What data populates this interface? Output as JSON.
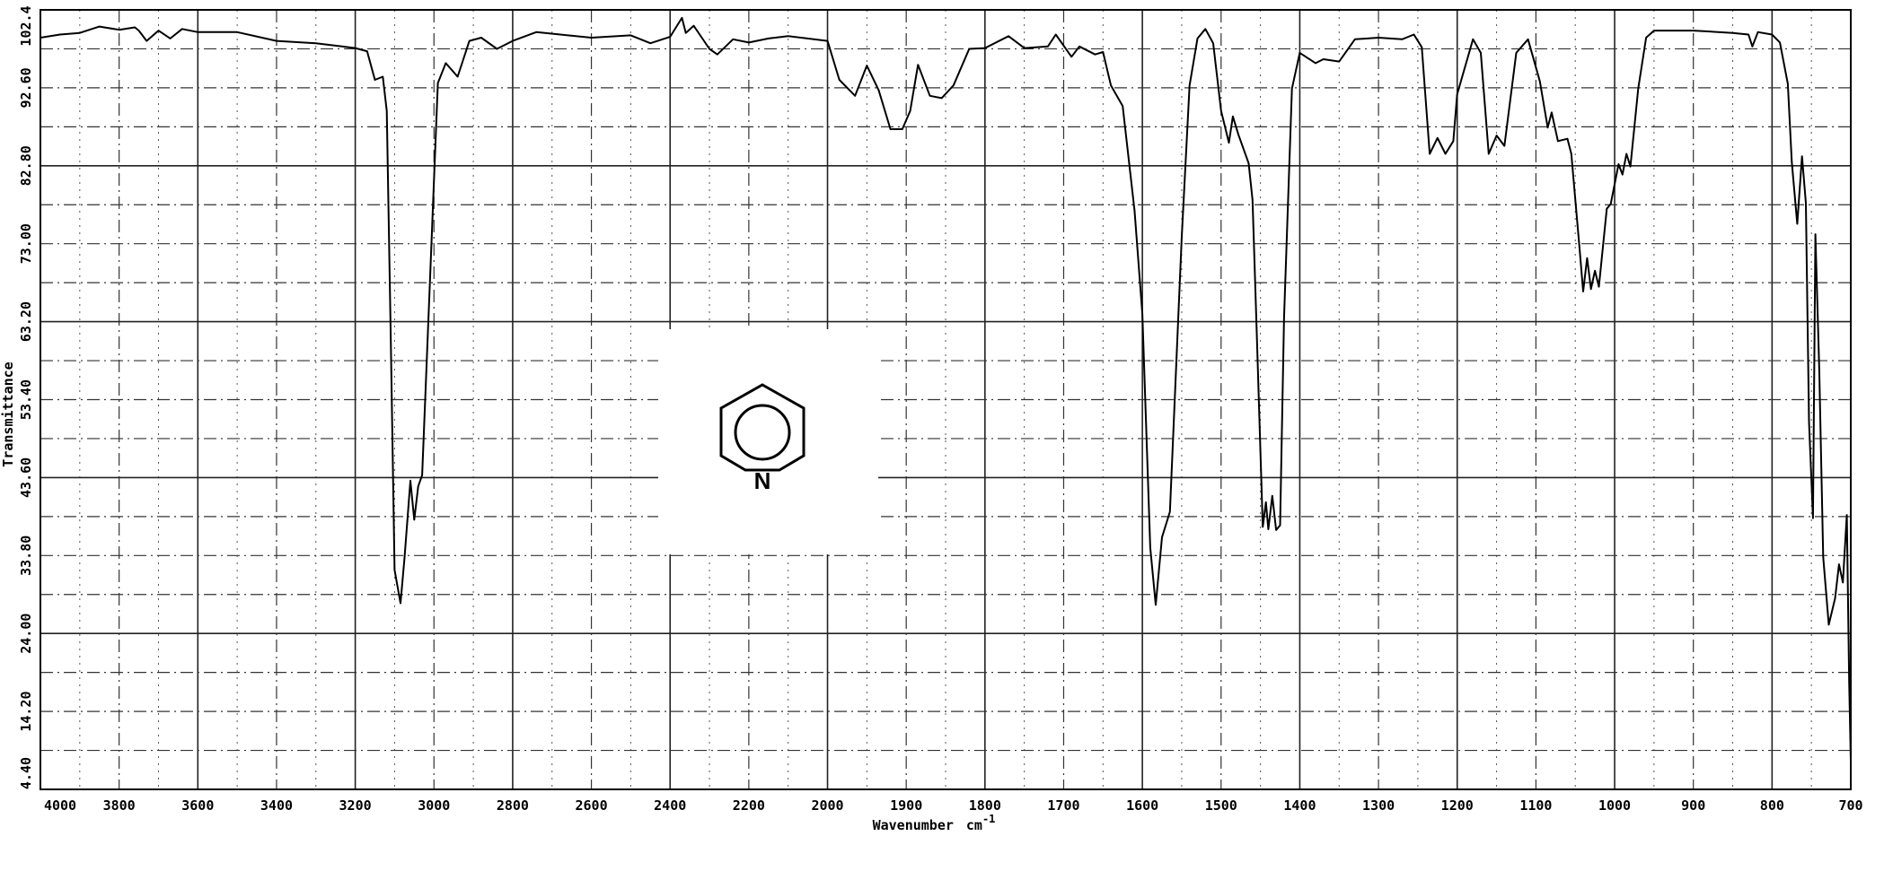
{
  "chart_data": {
    "type": "line",
    "title": "",
    "xlabel": "Wavenumber",
    "xlabel_unit": "cm",
    "xlabel_exp": "-1",
    "ylabel": "Transmittance",
    "xlim": [
      4000,
      700
    ],
    "ylim": [
      4.4,
      102.4
    ],
    "x_scale": "split: 200 cm-1 per division from 4000 to 2000, 100 cm-1 per division from 2000 to 700",
    "grid": true,
    "line_color": "#000000",
    "x_ticks": [
      "4000",
      "3800",
      "3600",
      "3400",
      "3200",
      "3000",
      "2800",
      "2600",
      "2400",
      "2200",
      "2000",
      "1900",
      "1800",
      "1700",
      "1600",
      "1500",
      "1400",
      "1300",
      "1200",
      "1100",
      "1000",
      "900",
      "800",
      "700"
    ],
    "y_ticks": [
      "4.40",
      "14.20",
      "24.00",
      "33.80",
      "43.60",
      "53.40",
      "63.20",
      "73.00",
      "82.80",
      "92.60",
      "102.4"
    ],
    "structure": {
      "name": "pyridine",
      "label": "N"
    },
    "points": [
      [
        4000,
        98.9
      ],
      [
        3950,
        99.3
      ],
      [
        3900,
        99.5
      ],
      [
        3850,
        100.3
      ],
      [
        3800,
        99.9
      ],
      [
        3760,
        100.2
      ],
      [
        3750,
        99.8
      ],
      [
        3730,
        98.5
      ],
      [
        3700,
        99.8
      ],
      [
        3670,
        98.8
      ],
      [
        3640,
        100
      ],
      [
        3600,
        99.6
      ],
      [
        3500,
        99.6
      ],
      [
        3400,
        98.5
      ],
      [
        3300,
        98.2
      ],
      [
        3200,
        97.6
      ],
      [
        3170,
        97.2
      ],
      [
        3150,
        93.6
      ],
      [
        3130,
        94.0
      ],
      [
        3120,
        89.7
      ],
      [
        3110,
        61.5
      ],
      [
        3100,
        32.0
      ],
      [
        3085,
        27.8
      ],
      [
        3075,
        33.4
      ],
      [
        3060,
        43.2
      ],
      [
        3050,
        38.3
      ],
      [
        3040,
        42.5
      ],
      [
        3030,
        43.9
      ],
      [
        3010,
        68.6
      ],
      [
        2990,
        93.2
      ],
      [
        2970,
        95.7
      ],
      [
        2940,
        94.0
      ],
      [
        2910,
        98.5
      ],
      [
        2880,
        98.9
      ],
      [
        2840,
        97.5
      ],
      [
        2800,
        98.5
      ],
      [
        2740,
        99.6
      ],
      [
        2600,
        98.9
      ],
      [
        2500,
        99.2
      ],
      [
        2450,
        98.2
      ],
      [
        2400,
        99.0
      ],
      [
        2370,
        101.4
      ],
      [
        2360,
        99.5
      ],
      [
        2340,
        100.4
      ],
      [
        2300,
        97.5
      ],
      [
        2280,
        96.8
      ],
      [
        2240,
        98.7
      ],
      [
        2200,
        98.3
      ],
      [
        2150,
        98.8
      ],
      [
        2100,
        99.1
      ],
      [
        2000,
        98.5
      ],
      [
        1985,
        93.6
      ],
      [
        1965,
        91.6
      ],
      [
        1950,
        95.4
      ],
      [
        1935,
        92.3
      ],
      [
        1920,
        87.4
      ],
      [
        1905,
        87.4
      ],
      [
        1895,
        89.7
      ],
      [
        1885,
        95.5
      ],
      [
        1870,
        91.6
      ],
      [
        1855,
        91.3
      ],
      [
        1840,
        92.9
      ],
      [
        1820,
        97.5
      ],
      [
        1800,
        97.6
      ],
      [
        1770,
        99.1
      ],
      [
        1750,
        97.6
      ],
      [
        1720,
        97.8
      ],
      [
        1710,
        99.3
      ],
      [
        1690,
        96.5
      ],
      [
        1680,
        97.8
      ],
      [
        1660,
        96.8
      ],
      [
        1650,
        97.1
      ],
      [
        1640,
        92.9
      ],
      [
        1625,
        90.3
      ],
      [
        1610,
        77.2
      ],
      [
        1600,
        64.2
      ],
      [
        1590,
        34.8
      ],
      [
        1583,
        27.6
      ],
      [
        1575,
        36.1
      ],
      [
        1565,
        39.3
      ],
      [
        1550,
        73.9
      ],
      [
        1540,
        92.9
      ],
      [
        1530,
        98.8
      ],
      [
        1520,
        100.0
      ],
      [
        1510,
        98.2
      ],
      [
        1500,
        89.7
      ],
      [
        1490,
        85.7
      ],
      [
        1485,
        89.0
      ],
      [
        1478,
        86.7
      ],
      [
        1465,
        83.1
      ],
      [
        1460,
        78.5
      ],
      [
        1455,
        62.9
      ],
      [
        1447,
        37.4
      ],
      [
        1443,
        40.5
      ],
      [
        1440,
        37.1
      ],
      [
        1435,
        41.3
      ],
      [
        1430,
        37.0
      ],
      [
        1425,
        37.6
      ],
      [
        1420,
        63.7
      ],
      [
        1410,
        92.5
      ],
      [
        1400,
        97.0
      ],
      [
        1380,
        95.7
      ],
      [
        1370,
        96.2
      ],
      [
        1350,
        95.9
      ],
      [
        1330,
        98.7
      ],
      [
        1300,
        98.9
      ],
      [
        1270,
        98.7
      ],
      [
        1255,
        99.3
      ],
      [
        1245,
        97.7
      ],
      [
        1235,
        84.3
      ],
      [
        1225,
        86.3
      ],
      [
        1215,
        84.3
      ],
      [
        1205,
        85.9
      ],
      [
        1200,
        91.8
      ],
      [
        1180,
        98.7
      ],
      [
        1170,
        97.0
      ],
      [
        1160,
        84.3
      ],
      [
        1150,
        86.6
      ],
      [
        1140,
        85.3
      ],
      [
        1125,
        97.0
      ],
      [
        1110,
        98.7
      ],
      [
        1095,
        93.4
      ],
      [
        1085,
        87.6
      ],
      [
        1080,
        89.5
      ],
      [
        1072,
        85.9
      ],
      [
        1060,
        86.2
      ],
      [
        1055,
        84.3
      ],
      [
        1045,
        72.9
      ],
      [
        1040,
        67.0
      ],
      [
        1035,
        71.2
      ],
      [
        1030,
        67.3
      ],
      [
        1025,
        69.6
      ],
      [
        1020,
        67.6
      ],
      [
        1010,
        77.4
      ],
      [
        1005,
        78.0
      ],
      [
        995,
        83.0
      ],
      [
        990,
        81.7
      ],
      [
        985,
        84.3
      ],
      [
        980,
        82.7
      ],
      [
        970,
        92.5
      ],
      [
        960,
        98.9
      ],
      [
        950,
        99.8
      ],
      [
        900,
        99.8
      ],
      [
        850,
        99.5
      ],
      [
        830,
        99.3
      ],
      [
        825,
        97.8
      ],
      [
        818,
        99.6
      ],
      [
        800,
        99.3
      ],
      [
        790,
        98.3
      ],
      [
        780,
        93.1
      ],
      [
        775,
        83.3
      ],
      [
        768,
        75.5
      ],
      [
        762,
        84.0
      ],
      [
        757,
        78.1
      ],
      [
        753,
        50.6
      ],
      [
        748,
        38.5
      ],
      [
        745,
        74.2
      ],
      [
        740,
        57.2
      ],
      [
        735,
        33.6
      ],
      [
        728,
        25.1
      ],
      [
        720,
        28.4
      ],
      [
        715,
        32.7
      ],
      [
        710,
        30.4
      ],
      [
        705,
        38.9
      ],
      [
        702,
        18.0
      ],
      [
        700,
        8.0
      ]
    ]
  }
}
